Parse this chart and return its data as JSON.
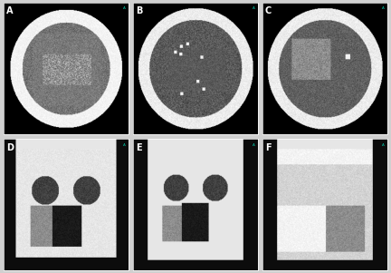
{
  "figure_size": [
    4.32,
    3.01
  ],
  "dpi": 100,
  "layout": {
    "rows": 2,
    "cols": 3,
    "labels": [
      "A",
      "B",
      "C",
      "D",
      "E",
      "F"
    ]
  },
  "background_color": "#d0d0d0",
  "panel_bg_color": "#000000",
  "label_color": "#ffffff",
  "label_fontsize": 7,
  "border_color": "#ffffff",
  "border_lw": 0.5,
  "hspace": 0.04,
  "wspace": 0.04
}
